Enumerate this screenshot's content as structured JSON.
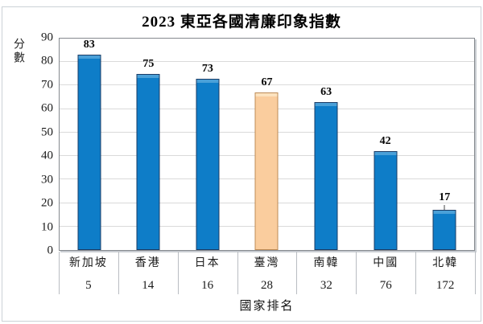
{
  "chart_data": {
    "type": "bar",
    "title": "2023 東亞各國清廉印象指數",
    "categories": [
      "新加坡",
      "香港",
      "日本",
      "臺灣",
      "南韓",
      "中國",
      "北韓"
    ],
    "rankings": [
      "5",
      "14",
      "16",
      "28",
      "32",
      "76",
      "172"
    ],
    "values": [
      83,
      75,
      73,
      67,
      63,
      42,
      17
    ],
    "xlabel": "國家排名",
    "ylabel": "分數",
    "ylim": [
      0,
      90
    ],
    "yticks": [
      0,
      10,
      20,
      30,
      40,
      50,
      60,
      70,
      80,
      90
    ],
    "grid": true,
    "legend": "none",
    "highlight_category": "臺灣",
    "label_leaders": [
      false,
      false,
      false,
      false,
      false,
      false,
      true
    ]
  },
  "colors": {
    "bar_fill": "#0e7dc8",
    "bar_top_highlight": "#4aa0d8",
    "bar_border": "#1a3c66",
    "highlight_fill": "#facd9e",
    "highlight_top_highlight": "#fce3bf",
    "highlight_border": "#be8b55",
    "gridline": "#dadada",
    "plot_border": "#85898e",
    "text": "#1a1a1a"
  }
}
